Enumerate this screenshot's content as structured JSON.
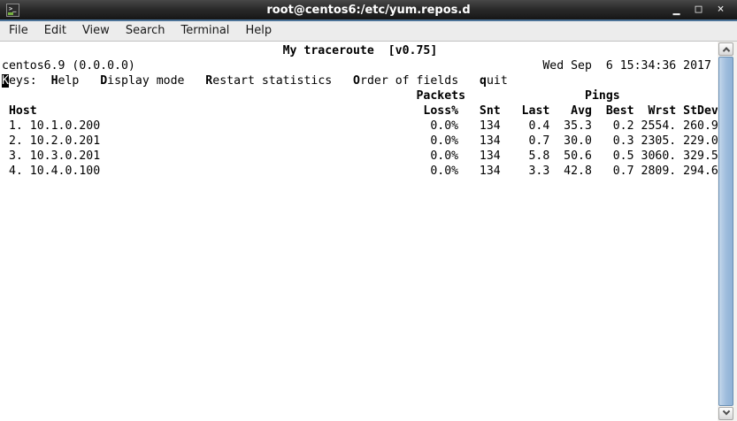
{
  "window": {
    "title": "root@centos6:/etc/yum.repos.d",
    "icon_glyph": ">_",
    "controls": [
      {
        "name": "minimize-button",
        "icon": "minimize-icon",
        "glyph": "▁"
      },
      {
        "name": "maximize-button",
        "icon": "maximize-icon",
        "glyph": "□"
      },
      {
        "name": "close-button",
        "icon": "close-icon",
        "glyph": "×"
      }
    ]
  },
  "menu": {
    "items": [
      "File",
      "Edit",
      "View",
      "Search",
      "Terminal",
      "Help"
    ]
  },
  "terminal": {
    "app_title": "My traceroute  [v0.75]",
    "local_host": "centos6.9 (0.0.0.0)",
    "datetime": "Wed Sep  6 15:34:36 2017",
    "keys_hint": "Keys:  Help   Display mode   Restart statistics   Order of fields   quit",
    "lines": [
      [
        {
          "pad": 40
        },
        {
          "t": "My traceroute  [v0.75]",
          "b": true
        }
      ],
      [
        {
          "t": "centos6.9 (0.0.0.0)"
        },
        {
          "pad": 58
        },
        {
          "t": "Wed Sep  6 15:34:36 2017"
        }
      ],
      [
        {
          "t": "K",
          "cursor": true
        },
        {
          "t": "eys:  "
        },
        {
          "t": "H",
          "b": true
        },
        {
          "t": "elp   "
        },
        {
          "t": "D",
          "b": true
        },
        {
          "t": "isplay mode   "
        },
        {
          "t": "R",
          "b": true
        },
        {
          "t": "estart statistics   "
        },
        {
          "t": "O",
          "b": true
        },
        {
          "t": "rder of fields   "
        },
        {
          "t": "q",
          "b": true
        },
        {
          "t": "uit"
        }
      ],
      [
        {
          "pad": 59
        },
        {
          "t": "Packets",
          "b": true
        },
        {
          "pad": 17
        },
        {
          "t": "Pings",
          "b": true
        }
      ],
      [
        {
          "t": " "
        },
        {
          "t": "Host",
          "b": true
        },
        {
          "pad": 54
        },
        {
          "t": " Loss%   Snt   Last   Avg  Best  Wrst StDev",
          "b": true
        }
      ],
      [
        {
          "t": " 1. 10.1.0.200"
        },
        {
          "pad": 45
        },
        {
          "t": "  0.0%   134    0.4  35.3   0.2 2554. 260.9"
        }
      ],
      [
        {
          "t": " 2. 10.2.0.201"
        },
        {
          "pad": 45
        },
        {
          "t": "  0.0%   134    0.7  30.0   0.3 2305. 229.0"
        }
      ],
      [
        {
          "t": " 3. 10.3.0.201"
        },
        {
          "pad": 45
        },
        {
          "t": "  0.0%   134    5.8  50.6   0.5 3060. 329.5"
        }
      ],
      [
        {
          "t": " 4. 10.4.0.100"
        },
        {
          "pad": 45
        },
        {
          "t": "  0.0%   134    3.3  42.8   0.7 2809. 294.6"
        }
      ]
    ],
    "stats_table": {
      "group_headers": [
        "Packets",
        "Pings"
      ],
      "columns": [
        "Host",
        "Loss%",
        "Snt",
        "Last",
        "Avg",
        "Best",
        "Wrst",
        "StDev"
      ],
      "rows": [
        [
          "1. 10.1.0.200",
          "0.0%",
          "134",
          "0.4",
          "35.3",
          "0.2",
          "2554.",
          "260.9"
        ],
        [
          "2. 10.2.0.201",
          "0.0%",
          "134",
          "0.7",
          "30.0",
          "0.3",
          "2305.",
          "229.0"
        ],
        [
          "3. 10.3.0.201",
          "0.0%",
          "134",
          "5.8",
          "50.6",
          "0.5",
          "3060.",
          "329.5"
        ],
        [
          "4. 10.4.0.100",
          "0.0%",
          "134",
          "3.3",
          "42.8",
          "0.7",
          "2809.",
          "294.6"
        ]
      ]
    }
  },
  "colors": {
    "titlebar_accent": "#4c7398",
    "scrollbar_thumb": "#9cbbdc",
    "terminal_fg": "#000000",
    "terminal_bg": "#ffffff"
  }
}
